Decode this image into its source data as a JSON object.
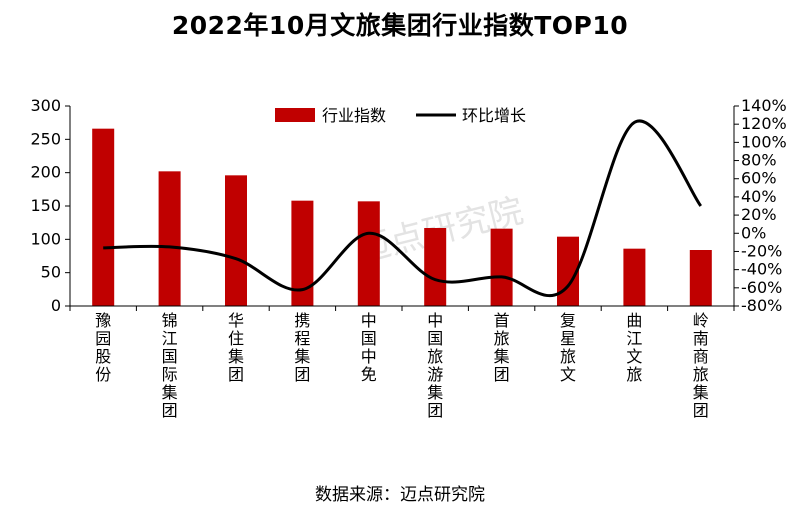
{
  "title": "2022年10月文旅集团行业指数TOP10",
  "source": "数据来源：迈点研究院",
  "chart_data": {
    "type": "bar",
    "categories": [
      "豫园股份",
      "锦江国际集团",
      "华住集团",
      "携程集团",
      "中国中免",
      "中国旅游集团",
      "首旅集团",
      "复星旅文",
      "曲江文旅",
      "岭南商旅集团"
    ],
    "series": [
      {
        "name": "行业指数",
        "type": "bar",
        "axis": "left",
        "values": [
          266,
          202,
          196,
          158,
          157,
          117,
          116,
          104,
          86,
          84
        ]
      },
      {
        "name": "环比增长",
        "type": "line",
        "axis": "right",
        "values": [
          -16,
          -15,
          -28,
          -62,
          0,
          -51,
          -48,
          -58,
          122,
          30
        ]
      }
    ],
    "left_axis": {
      "ylim": [
        0,
        300
      ],
      "ticks": [
        "0",
        "50",
        "100",
        "150",
        "200",
        "250",
        "300"
      ]
    },
    "right_axis": {
      "ylim": [
        -80,
        140
      ],
      "ticks": [
        "-80%",
        "-60%",
        "-40%",
        "-20%",
        "0%",
        "20%",
        "40%",
        "60%",
        "80%",
        "100%",
        "120%",
        "140%"
      ]
    },
    "legend_position": "top",
    "grid": false,
    "colors": {
      "bar": "#c00000",
      "line": "#000000",
      "axis": "#000000"
    }
  },
  "watermark": "迈点研究院"
}
